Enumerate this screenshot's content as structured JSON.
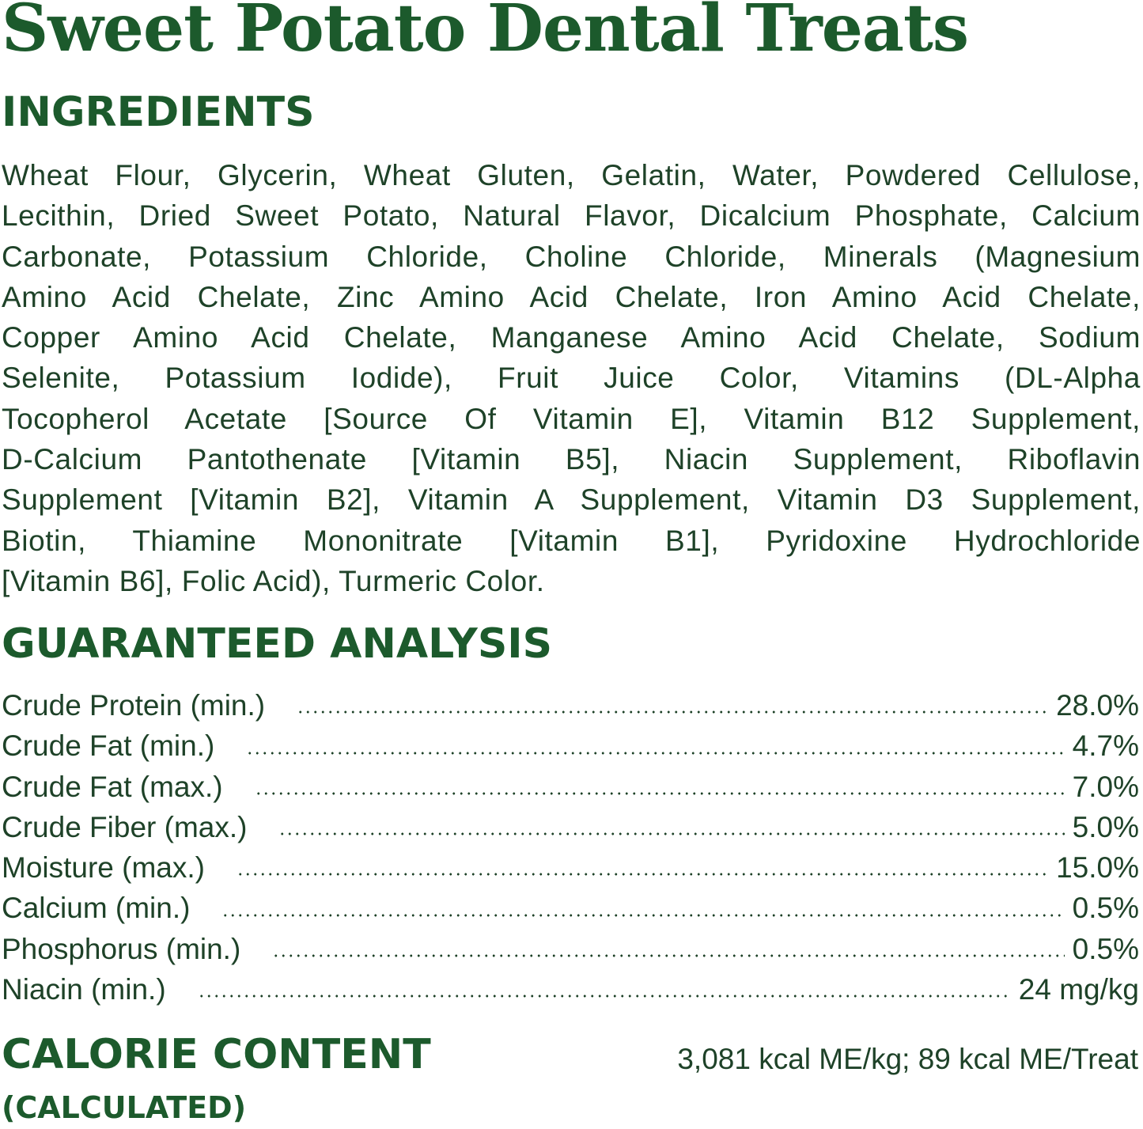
{
  "title": "Sweet Potato Dental Treats",
  "ingredients": {
    "heading": "INGREDIENTS",
    "lines": [
      "Wheat Flour, Glycerin, Wheat Gluten, Gelatin, Water, Powdered Cellulose,",
      "Lecithin, Dried Sweet Potato, Natural Flavor, Dicalcium Phosphate, Calcium",
      "Carbonate, Potassium Chloride, Choline Chloride, Minerals (Magnesium",
      "Amino Acid Chelate, Zinc Amino Acid Chelate, Iron Amino Acid Chelate,",
      "Copper Amino Acid Chelate, Manganese Amino Acid Chelate, Sodium",
      "Selenite, Potassium Iodide), Fruit Juice Color, Vitamins (DL-Alpha",
      "Tocopherol Acetate [Source Of Vitamin E], Vitamin B12 Supplement,",
      "D-Calcium Pantothenate [Vitamin B5], Niacin Supplement, Riboflavin",
      "Supplement [Vitamin B2], Vitamin A Supplement, Vitamin D3 Supplement,",
      "Biotin, Thiamine Mononitrate [Vitamin B1], Pyridoxine Hydrochloride",
      "[Vitamin B6], Folic Acid), Turmeric Color."
    ]
  },
  "analysis": {
    "heading": "GUARANTEED ANALYSIS",
    "rows": [
      {
        "label": "Crude Protein (min.)",
        "value": "28.0%"
      },
      {
        "label": "Crude Fat (min.)",
        "value": "4.7%"
      },
      {
        "label": "Crude Fat (max.)",
        "value": "7.0%"
      },
      {
        "label": "Crude Fiber (max.)",
        "value": "5.0%"
      },
      {
        "label": "Moisture (max.)",
        "value": "15.0%"
      },
      {
        "label": "Calcium (min.)",
        "value": "0.5%"
      },
      {
        "label": "Phosphorus (min.)",
        "value": "0.5%"
      },
      {
        "label": "Niacin (min.)",
        "value": "24 mg/kg"
      }
    ]
  },
  "calorie": {
    "heading": "CALORIE CONTENT",
    "subheading": "(CALCULATED)",
    "value": "3,081 kcal ME/kg; 89 kcal ME/Treat"
  },
  "colors": {
    "heading": "#1c5a2c",
    "text": "#1e4228",
    "background": "#ffffff"
  }
}
